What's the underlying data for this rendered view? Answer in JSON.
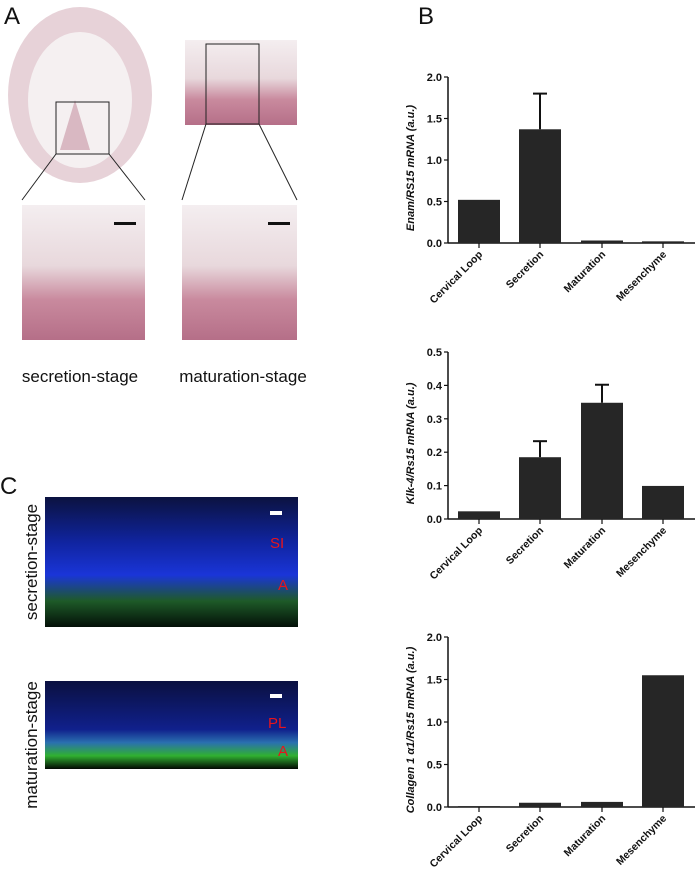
{
  "panels": {
    "a": {
      "letter": "A",
      "captions": [
        "secretion-stage",
        "maturation-stage"
      ]
    },
    "b": {
      "letter": "B"
    },
    "c": {
      "letter": "C",
      "row_labels": [
        "secretion-stage",
        "maturation-stage"
      ],
      "annotations_top": [
        "SI",
        "A"
      ],
      "annotations_bottom": [
        "PL",
        "A"
      ]
    }
  },
  "colors": {
    "bar": "#262626",
    "annotation": "#e8141c",
    "nuclei": "#1a2fd0",
    "ameloblast": "#2a9a2a"
  },
  "chart_data": [
    {
      "type": "bar",
      "categories": [
        "Cervical Loop",
        "Secretion",
        "Maturation",
        "Mesenchyme"
      ],
      "values": [
        0.52,
        1.37,
        0.03,
        0.02
      ],
      "error_upper": [
        null,
        1.8,
        null,
        null
      ],
      "ylabel": "Enam/RS15 mRNA (a.u.)",
      "ylim": [
        0,
        2.0
      ],
      "yticks": [
        "0.0",
        "0.5",
        "1.0",
        "1.5",
        "2.0"
      ]
    },
    {
      "type": "bar",
      "categories": [
        "Cervical Loop",
        "Secretion",
        "Maturation",
        "Mesenchyme"
      ],
      "values": [
        0.023,
        0.185,
        0.348,
        0.099
      ],
      "error_upper": [
        null,
        0.233,
        0.402,
        null
      ],
      "ylabel": "Klk-4/Rs15 mRNA (a.u.)",
      "ylim": [
        0,
        0.5
      ],
      "yticks": [
        "0.0",
        "0.1",
        "0.2",
        "0.3",
        "0.4",
        "0.5"
      ]
    },
    {
      "type": "bar",
      "categories": [
        "Cervical Loop",
        "Secretion",
        "Maturation",
        "Mesenchyme"
      ],
      "values": [
        0.01,
        0.05,
        0.06,
        1.55
      ],
      "error_upper": [
        null,
        null,
        null,
        null
      ],
      "ylabel": "Collagen 1 α1/Rs15 mRNA (a.u.)",
      "ylim": [
        0,
        2.0
      ],
      "yticks": [
        "0.0",
        "0.5",
        "1.0",
        "1.5",
        "2.0"
      ]
    }
  ]
}
